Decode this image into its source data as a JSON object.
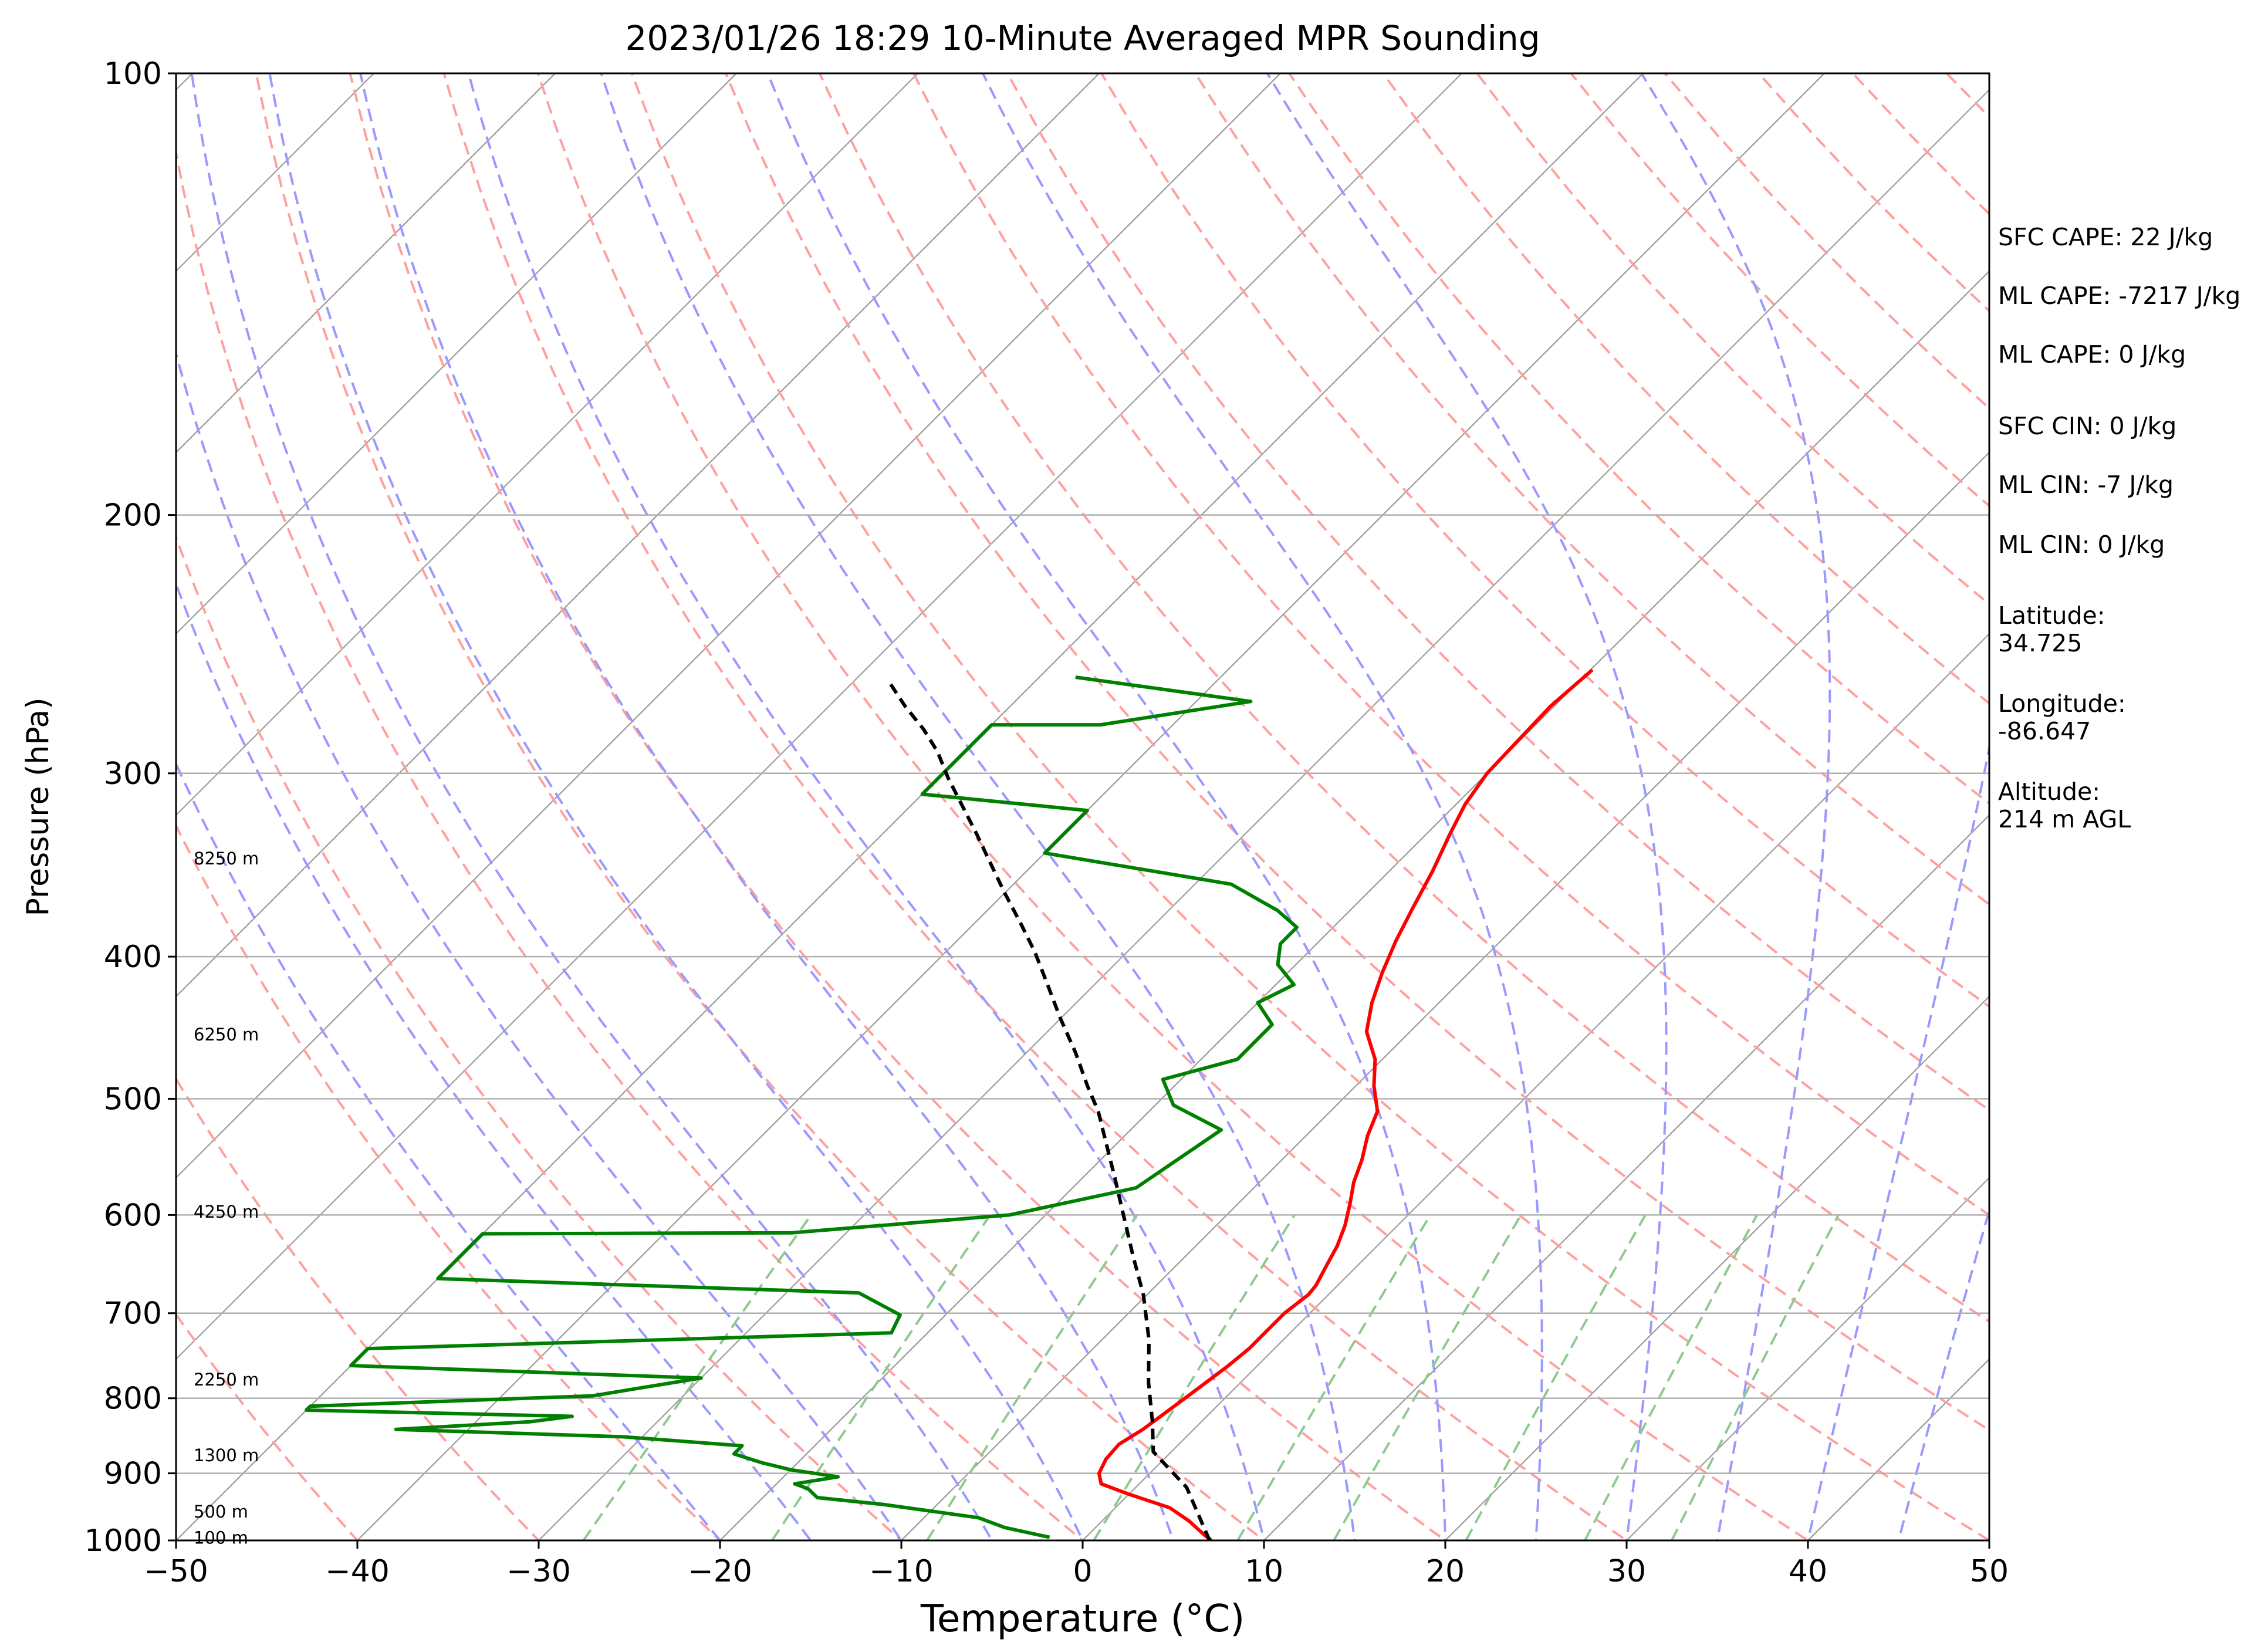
{
  "chart_data": {
    "type": "line",
    "subtype": "skew-T log-P sounding",
    "title": "2023/01/26 18:29 10-Minute Averaged MPR Sounding",
    "xlabel": "Temperature (°C)",
    "ylabel": "Pressure (hPa)",
    "xlim": [
      -50,
      50
    ],
    "ylim": [
      1000,
      100
    ],
    "y_scale": "log",
    "x_ticks": [
      "−50",
      "−40",
      "−30",
      "−20",
      "−10",
      "0",
      "10",
      "20",
      "30",
      "40",
      "50"
    ],
    "x_tick_values": [
      -50,
      -40,
      -30,
      -20,
      -10,
      0,
      10,
      20,
      30,
      40,
      50
    ],
    "y_ticks": [
      "100",
      "200",
      "300",
      "400",
      "500",
      "600",
      "700",
      "800",
      "900",
      "1000"
    ],
    "y_tick_values": [
      100,
      200,
      300,
      400,
      500,
      600,
      700,
      800,
      900,
      1000
    ],
    "grid": true,
    "height_labels": [
      {
        "text": "8250 m",
        "p": 343
      },
      {
        "text": "6250 m",
        "p": 452
      },
      {
        "text": "4250 m",
        "p": 597
      },
      {
        "text": "2250 m",
        "p": 777
      },
      {
        "text": "1300 m",
        "p": 875
      },
      {
        "text": "500 m",
        "p": 956
      },
      {
        "text": "100 m",
        "p": 996
      }
    ],
    "series": [
      {
        "role": "temperature",
        "color": "#ff0000",
        "points": [
          [
            -19.9,
            255
          ],
          [
            -20.2,
            270
          ],
          [
            -20.1,
            285
          ],
          [
            -20.0,
            300
          ],
          [
            -19.5,
            315
          ],
          [
            -18.7,
            330
          ],
          [
            -17.6,
            350
          ],
          [
            -16.7,
            370
          ],
          [
            -15.8,
            390
          ],
          [
            -14.8,
            410
          ],
          [
            -13.7,
            430
          ],
          [
            -12.4,
            450
          ],
          [
            -10.4,
            470
          ],
          [
            -9.0,
            490
          ],
          [
            -7.4,
            510
          ],
          [
            -6.6,
            530
          ],
          [
            -5.6,
            550
          ],
          [
            -4.8,
            570
          ],
          [
            -3.8,
            590
          ],
          [
            -2.9,
            610
          ],
          [
            -2.2,
            630
          ],
          [
            -1.7,
            650
          ],
          [
            -1.2,
            670
          ],
          [
            -1.1,
            680
          ],
          [
            -1.4,
            700
          ],
          [
            -1.4,
            720
          ],
          [
            -1.4,
            740
          ],
          [
            -1.6,
            760
          ],
          [
            -1.9,
            780
          ],
          [
            -2.2,
            800
          ],
          [
            -2.5,
            820
          ],
          [
            -2.8,
            840
          ],
          [
            -3.3,
            860
          ],
          [
            -3.2,
            880
          ],
          [
            -2.8,
            900
          ],
          [
            -2.1,
            915
          ],
          [
            0.0,
            930
          ],
          [
            3.0,
            950
          ],
          [
            4.8,
            970
          ],
          [
            6.3,
            990
          ],
          [
            7.1,
            1000
          ]
        ]
      },
      {
        "role": "dewpoint",
        "color": "#008000",
        "points": [
          [
            -48,
            258
          ],
          [
            -37,
            268
          ],
          [
            -44,
            278
          ],
          [
            -50,
            278
          ],
          [
            -50,
            310
          ],
          [
            -40,
            318
          ],
          [
            -40,
            330
          ],
          [
            -40,
            340
          ],
          [
            -28,
            357
          ],
          [
            -24,
            372
          ],
          [
            -22,
            382
          ],
          [
            -22,
            392
          ],
          [
            -21,
            405
          ],
          [
            -19,
            418
          ],
          [
            -20,
            430
          ],
          [
            -18,
            445
          ],
          [
            -18,
            470
          ],
          [
            -21,
            485
          ],
          [
            -19,
            505
          ],
          [
            -15,
            525
          ],
          [
            -16.5,
            575
          ],
          [
            -22,
            600
          ],
          [
            -33,
            617
          ],
          [
            -50,
            618
          ],
          [
            -50,
            663
          ],
          [
            -26,
            678
          ],
          [
            -22.5,
            702
          ],
          [
            -22,
            722
          ],
          [
            -50,
            740
          ],
          [
            -50,
            760
          ],
          [
            -30,
            775
          ],
          [
            -33,
            788
          ],
          [
            -35,
            797
          ],
          [
            -50,
            810
          ],
          [
            -50,
            815
          ],
          [
            -35,
            823
          ],
          [
            -37,
            830
          ],
          [
            -44,
            840
          ],
          [
            -31,
            850
          ],
          [
            -24,
            862
          ],
          [
            -24,
            873
          ],
          [
            -22,
            885
          ],
          [
            -20,
            895
          ],
          [
            -17,
            905
          ],
          [
            -19,
            915
          ],
          [
            -18,
            922
          ],
          [
            -17,
            935
          ],
          [
            -13,
            945
          ],
          [
            -7,
            965
          ],
          [
            -5,
            980
          ],
          [
            -2,
            995
          ]
        ]
      },
      {
        "role": "parcel",
        "color": "#000000",
        "style": "dashed",
        "points": [
          [
            7.0,
            1000
          ],
          [
            2.8,
            920
          ],
          [
            -1.0,
            870
          ],
          [
            -2.7,
            830
          ],
          [
            -5.1,
            780
          ],
          [
            -7.4,
            730
          ],
          [
            -10.2,
            680
          ],
          [
            -12.9,
            640
          ],
          [
            -15.7,
            600
          ],
          [
            -18.3,
            565
          ],
          [
            -20.7,
            535
          ],
          [
            -22.8,
            510
          ],
          [
            -24.8,
            490
          ],
          [
            -27.3,
            465
          ],
          [
            -30.1,
            440
          ],
          [
            -32.7,
            417
          ],
          [
            -35.1,
            397
          ],
          [
            -37.4,
            380
          ],
          [
            -40.0,
            362
          ],
          [
            -42.5,
            345
          ],
          [
            -44.8,
            330
          ],
          [
            -47.1,
            316
          ],
          [
            -49.5,
            302
          ],
          [
            -51.5,
            290
          ],
          [
            -53.5,
            280
          ],
          [
            -55.8,
            270
          ],
          [
            -58.0,
            260
          ]
        ]
      }
    ],
    "reference_lines": {
      "isotherms_color": "#9a9a9a",
      "dry_adiabats_color": "#ffa0a0",
      "moist_adiabats_color": "#9999ff",
      "mixing_ratio_color": "#8fc98f",
      "mixing_ratios_gkg": [
        0.4,
        1,
        2,
        4,
        7,
        10,
        16,
        24,
        32
      ]
    }
  },
  "info_panel": {
    "sfc_cape": "SFC CAPE: 22 J/kg",
    "ml_cape_a": "ML CAPE: -7217 J/kg",
    "ml_cape_b": "ML CAPE: 0 J/kg",
    "sfc_cin": "SFC CIN: 0 J/kg",
    "ml_cin_a": "ML CIN: -7 J/kg",
    "ml_cin_b": "ML CIN: 0 J/kg",
    "latitude_label": "Latitude:",
    "latitude_value": "34.725",
    "longitude_label": "Longitude:",
    "longitude_value": "-86.647",
    "altitude_label": "Altitude:",
    "altitude_value": "214 m AGL"
  }
}
